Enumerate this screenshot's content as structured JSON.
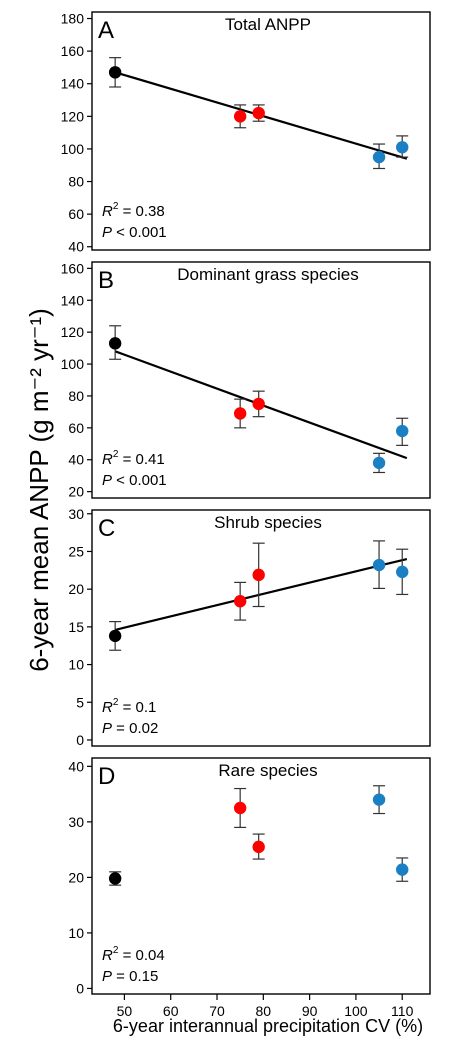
{
  "figure": {
    "ylabel": "6-year mean ANPP (g m⁻² yr⁻¹)",
    "xlabel": "6-year interannual precipitation CV (%)",
    "x_ticks": [
      50,
      60,
      70,
      80,
      90,
      100,
      110
    ],
    "xlim": [
      43,
      116
    ]
  },
  "colors": {
    "low_cv": "#000000",
    "mid_cv": "#ff0000",
    "high_cv": "#1a7fc3",
    "regression": "#000000",
    "error_bar": "#333333"
  },
  "chart_data": [
    {
      "type": "scatter",
      "letter": "A",
      "title": "Total ANPP",
      "ylim": [
        38,
        184
      ],
      "y_ticks": [
        40,
        60,
        80,
        100,
        120,
        140,
        160,
        180
      ],
      "points": [
        {
          "x": 48,
          "y": 147,
          "lo": 138,
          "hi": 156,
          "group": "low_cv"
        },
        {
          "x": 75,
          "y": 120,
          "lo": 113,
          "hi": 127,
          "group": "mid_cv"
        },
        {
          "x": 79,
          "y": 122,
          "lo": 117,
          "hi": 127,
          "group": "mid_cv"
        },
        {
          "x": 105,
          "y": 95,
          "lo": 88,
          "hi": 103,
          "group": "high_cv"
        },
        {
          "x": 110,
          "y": 101,
          "lo": 95,
          "hi": 108,
          "group": "high_cv"
        }
      ],
      "fit": {
        "x": [
          48,
          111
        ],
        "y": [
          147,
          94
        ]
      },
      "r2_label": "R",
      "r2_value": "0.38",
      "p_label": "P",
      "p_value": "0.001",
      "p_op": "<"
    },
    {
      "type": "scatter",
      "letter": "B",
      "title": "Dominant grass species",
      "ylim": [
        16,
        164
      ],
      "y_ticks": [
        20,
        40,
        60,
        80,
        100,
        120,
        140,
        160
      ],
      "points": [
        {
          "x": 48,
          "y": 113,
          "lo": 103,
          "hi": 124,
          "group": "low_cv"
        },
        {
          "x": 75,
          "y": 69,
          "lo": 60,
          "hi": 78,
          "group": "mid_cv"
        },
        {
          "x": 79,
          "y": 75,
          "lo": 67,
          "hi": 83,
          "group": "mid_cv"
        },
        {
          "x": 105,
          "y": 38,
          "lo": 32,
          "hi": 44,
          "group": "high_cv"
        },
        {
          "x": 110,
          "y": 58,
          "lo": 49,
          "hi": 66,
          "group": "high_cv"
        }
      ],
      "fit": {
        "x": [
          48,
          111
        ],
        "y": [
          108,
          41
        ]
      },
      "r2_label": "R",
      "r2_value": "0.41",
      "p_label": "P",
      "p_value": "0.001",
      "p_op": "<"
    },
    {
      "type": "scatter",
      "letter": "C",
      "title": "Shrub species",
      "ylim": [
        -0.8,
        30.5
      ],
      "y_ticks": [
        0,
        5,
        10,
        15,
        20,
        25,
        30
      ],
      "points": [
        {
          "x": 48,
          "y": 13.8,
          "lo": 11.9,
          "hi": 15.7,
          "group": "low_cv"
        },
        {
          "x": 75,
          "y": 18.4,
          "lo": 15.9,
          "hi": 20.9,
          "group": "mid_cv"
        },
        {
          "x": 79,
          "y": 21.9,
          "lo": 17.7,
          "hi": 26.1,
          "group": "mid_cv"
        },
        {
          "x": 105,
          "y": 23.2,
          "lo": 20.1,
          "hi": 26.4,
          "group": "high_cv"
        },
        {
          "x": 110,
          "y": 22.3,
          "lo": 19.3,
          "hi": 25.3,
          "group": "high_cv"
        }
      ],
      "fit": {
        "x": [
          48,
          111
        ],
        "y": [
          14.6,
          24
        ]
      },
      "r2_label": "R",
      "r2_value": "0.1",
      "p_label": "P",
      "p_value": "0.02",
      "p_op": "="
    },
    {
      "type": "scatter",
      "letter": "D",
      "title": "Rare species",
      "ylim": [
        -1,
        41.5
      ],
      "y_ticks": [
        0,
        10,
        20,
        30,
        40
      ],
      "points": [
        {
          "x": 48,
          "y": 19.8,
          "lo": 18.6,
          "hi": 21,
          "group": "low_cv"
        },
        {
          "x": 75,
          "y": 32.5,
          "lo": 29,
          "hi": 36,
          "group": "mid_cv"
        },
        {
          "x": 79,
          "y": 25.5,
          "lo": 23.3,
          "hi": 27.8,
          "group": "mid_cv"
        },
        {
          "x": 105,
          "y": 34,
          "lo": 31.5,
          "hi": 36.5,
          "group": "high_cv"
        },
        {
          "x": 110,
          "y": 21.4,
          "lo": 19.3,
          "hi": 23.5,
          "group": "high_cv"
        }
      ],
      "fit": null,
      "r2_label": "R",
      "r2_value": "0.04",
      "p_label": "P",
      "p_value": "0.15",
      "p_op": "="
    }
  ]
}
